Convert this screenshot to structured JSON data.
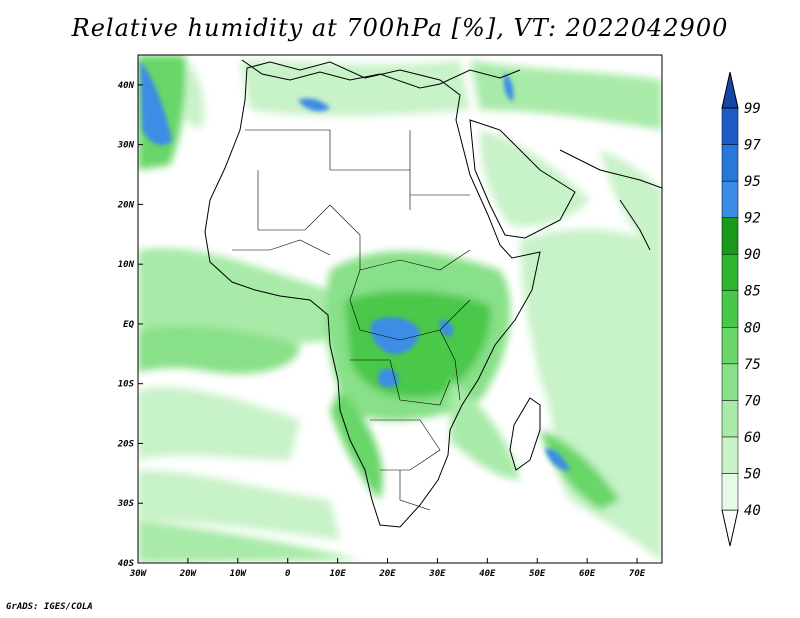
{
  "title": "Relative humidity at 700hPa [%], VT: 2022042900",
  "footer": "GrADS: IGES/COLA",
  "map": {
    "projection": "latlon",
    "lon_range": [
      -30,
      75
    ],
    "lat_range": [
      -40,
      45
    ],
    "lon_ticks": [
      "30W",
      "20W",
      "10W",
      "0",
      "10E",
      "20E",
      "30E",
      "40E",
      "50E",
      "60E",
      "70E"
    ],
    "lat_ticks": [
      "40S",
      "30S",
      "20S",
      "10S",
      "EQ",
      "10N",
      "20N",
      "30N",
      "40N"
    ]
  },
  "colorbar": {
    "levels": [
      "40",
      "50",
      "60",
      "70",
      "75",
      "80",
      "85",
      "90",
      "92",
      "95",
      "97",
      "99"
    ],
    "colors": [
      "#ffffff",
      "#e6fae6",
      "#c8f2c8",
      "#a8eaa8",
      "#88e088",
      "#68d668",
      "#48c848",
      "#2eb42e",
      "#1a9a1a",
      "#3c8ce6",
      "#2878dc",
      "#1e5ac8",
      "#1446a8"
    ]
  }
}
